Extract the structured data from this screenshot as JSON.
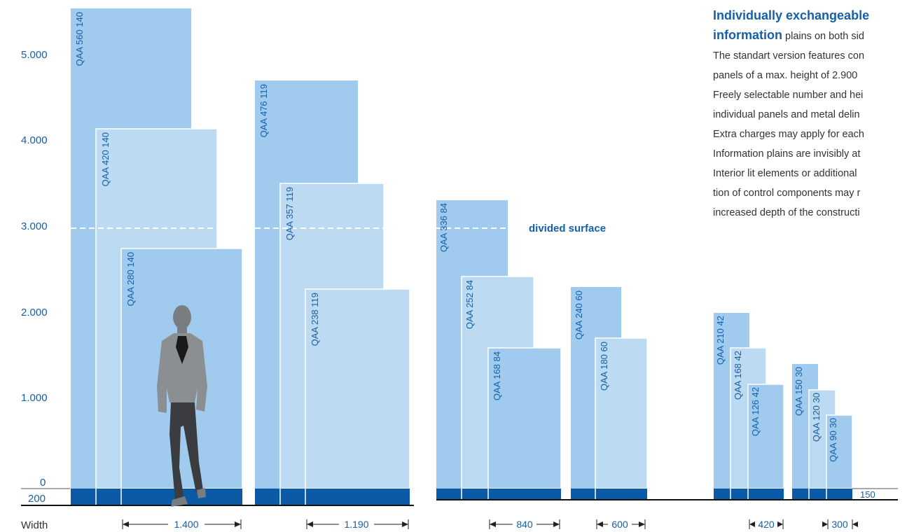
{
  "axis": {
    "y_ticks": [
      "5.000",
      "4.000",
      "3.000",
      "2.000",
      "1.000",
      "0"
    ],
    "base_label": "200",
    "width_title": "Width"
  },
  "colors": {
    "panel_dark": "#a0cbee",
    "panel_light": "#bcdaf2",
    "base": "#0c5aa6",
    "text_blue": "#1560a8"
  },
  "divided_surface": "divided surface",
  "side_label_150": "150",
  "groups": [
    {
      "width_label": "1.400",
      "panels": [
        "QAA 560 140",
        "QAA 420 140",
        "QAA 280 140"
      ]
    },
    {
      "width_label": "1.190",
      "panels": [
        "QAA 476 119",
        "QAA 357 119",
        "QAA 238 119"
      ]
    },
    {
      "width_label": "840",
      "panels": [
        "QAA 336 84",
        "QAA 252 84",
        "QAA 168 84"
      ]
    },
    {
      "width_label": "600",
      "panels": [
        "QAA 240 60",
        "QAA 180 60"
      ]
    },
    {
      "width_label": "420",
      "panels": [
        "QAA 210 42",
        "QAA 168 42",
        "QAA 126 42"
      ]
    },
    {
      "width_label": "300",
      "panels": [
        "QAA 150 30",
        "QAA 120 30",
        "QAA 90 30"
      ]
    }
  ],
  "description": {
    "heading_1": "Individually exchangeable",
    "heading_2_bold": "information",
    "heading_2_rest": " plains on both sid",
    "lines": [
      "The standart version features con",
      "panels of a max. height of 2.900",
      "Freely selectable number and hei",
      "individual panels and metal delin",
      "Extra charges may apply for each",
      "Information plains are invisibly at",
      "Interior lit elements or additional",
      "tion of control components may r",
      "increased depth of the constructi"
    ]
  }
}
